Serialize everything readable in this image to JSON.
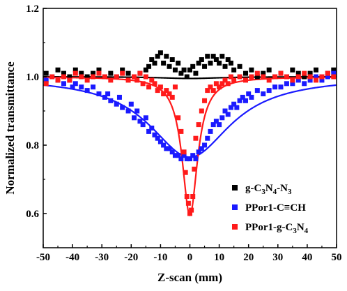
{
  "chart_data": {
    "type": "scatter",
    "xlabel": "Z-scan (mm)",
    "ylabel": "Normalized transmittance",
    "xlim": [
      -50,
      50
    ],
    "ylim": [
      0.5,
      1.2
    ],
    "x_ticks": [
      "-50",
      "-40",
      "-30",
      "-20",
      "-10",
      "0",
      "10",
      "20",
      "30",
      "40",
      "50"
    ],
    "y_ticks": [
      "0.6",
      "0.8",
      "1.0",
      "1.2"
    ],
    "legend_position": "bottom-right",
    "series": [
      {
        "name": "g-C3N4-N3",
        "color": "#000000",
        "fit_color": "#000000",
        "fit": {
          "baseline": 1.0,
          "depth": 0.005,
          "z0": 12
        },
        "points": [
          [
            -49,
            1.01
          ],
          [
            -47,
            1.0
          ],
          [
            -45,
            1.02
          ],
          [
            -43,
            1.01
          ],
          [
            -41,
            1.0
          ],
          [
            -39,
            1.02
          ],
          [
            -37,
            1.01
          ],
          [
            -35,
            1.0
          ],
          [
            -33,
            1.01
          ],
          [
            -31,
            1.02
          ],
          [
            -29,
            1.0
          ],
          [
            -27,
            1.01
          ],
          [
            -25,
            1.0
          ],
          [
            -23,
            1.02
          ],
          [
            -21,
            1.01
          ],
          [
            -19,
            1.0
          ],
          [
            -17,
            1.01
          ],
          [
            -15,
            1.02
          ],
          [
            -14,
            1.03
          ],
          [
            -13,
            1.05
          ],
          [
            -12,
            1.04
          ],
          [
            -11,
            1.06
          ],
          [
            -10,
            1.07
          ],
          [
            -9,
            1.04
          ],
          [
            -8,
            1.06
          ],
          [
            -7,
            1.03
          ],
          [
            -6,
            1.05
          ],
          [
            -5,
            1.02
          ],
          [
            -4,
            1.04
          ],
          [
            -3,
            1.01
          ],
          [
            -2,
            1.02
          ],
          [
            -1,
            1.0
          ],
          [
            0,
            1.02
          ],
          [
            1,
            1.03
          ],
          [
            2,
            1.01
          ],
          [
            3,
            1.04
          ],
          [
            4,
            1.05
          ],
          [
            5,
            1.03
          ],
          [
            6,
            1.06
          ],
          [
            7,
            1.04
          ],
          [
            8,
            1.06
          ],
          [
            9,
            1.05
          ],
          [
            10,
            1.04
          ],
          [
            11,
            1.06
          ],
          [
            12,
            1.03
          ],
          [
            13,
            1.05
          ],
          [
            14,
            1.04
          ],
          [
            15,
            1.02
          ],
          [
            17,
            1.03
          ],
          [
            19,
            1.01
          ],
          [
            21,
            1.02
          ],
          [
            23,
            1.0
          ],
          [
            25,
            1.01
          ],
          [
            27,
            1.02
          ],
          [
            29,
            1.0
          ],
          [
            31,
            1.01
          ],
          [
            33,
            1.0
          ],
          [
            35,
            1.02
          ],
          [
            37,
            1.01
          ],
          [
            39,
            1.0
          ],
          [
            41,
            1.01
          ],
          [
            43,
            1.02
          ],
          [
            45,
            1.0
          ],
          [
            47,
            1.01
          ],
          [
            49,
            1.02
          ]
        ]
      },
      {
        "name": "PPor1-C≡CH",
        "color": "#1a1aff",
        "fit_color": "#1a1aff",
        "fit": {
          "baseline": 1.0,
          "depth": 0.235,
          "z0": 17
        },
        "points": [
          [
            -49,
            0.99
          ],
          [
            -47,
            1.0
          ],
          [
            -45,
            0.99
          ],
          [
            -43,
            0.98
          ],
          [
            -41,
            0.99
          ],
          [
            -40,
            0.97
          ],
          [
            -39,
            0.98
          ],
          [
            -37,
            0.97
          ],
          [
            -35,
            0.96
          ],
          [
            -33,
            0.97
          ],
          [
            -31,
            0.95
          ],
          [
            -29,
            0.94
          ],
          [
            -28,
            0.95
          ],
          [
            -27,
            0.93
          ],
          [
            -25,
            0.92
          ],
          [
            -24,
            0.94
          ],
          [
            -23,
            0.91
          ],
          [
            -21,
            0.9
          ],
          [
            -20,
            0.92
          ],
          [
            -19,
            0.88
          ],
          [
            -18,
            0.9
          ],
          [
            -17,
            0.87
          ],
          [
            -16,
            0.86
          ],
          [
            -15,
            0.88
          ],
          [
            -14,
            0.84
          ],
          [
            -13,
            0.85
          ],
          [
            -12,
            0.83
          ],
          [
            -11,
            0.82
          ],
          [
            -10,
            0.81
          ],
          [
            -9,
            0.8
          ],
          [
            -8,
            0.79
          ],
          [
            -7,
            0.79
          ],
          [
            -6,
            0.78
          ],
          [
            -5,
            0.77
          ],
          [
            -4,
            0.77
          ],
          [
            -3,
            0.76
          ],
          [
            -2,
            0.77
          ],
          [
            -1,
            0.76
          ],
          [
            0,
            0.76
          ],
          [
            1,
            0.77
          ],
          [
            2,
            0.76
          ],
          [
            3,
            0.78
          ],
          [
            4,
            0.79
          ],
          [
            5,
            0.8
          ],
          [
            6,
            0.82
          ],
          [
            7,
            0.84
          ],
          [
            8,
            0.86
          ],
          [
            9,
            0.87
          ],
          [
            10,
            0.86
          ],
          [
            11,
            0.88
          ],
          [
            12,
            0.9
          ],
          [
            13,
            0.89
          ],
          [
            14,
            0.91
          ],
          [
            15,
            0.92
          ],
          [
            16,
            0.91
          ],
          [
            17,
            0.93
          ],
          [
            18,
            0.94
          ],
          [
            19,
            0.93
          ],
          [
            20,
            0.95
          ],
          [
            21,
            0.94
          ],
          [
            23,
            0.96
          ],
          [
            25,
            0.95
          ],
          [
            27,
            0.96
          ],
          [
            29,
            0.97
          ],
          [
            31,
            0.97
          ],
          [
            33,
            0.98
          ],
          [
            35,
            0.98
          ],
          [
            37,
            0.99
          ],
          [
            39,
            0.98
          ],
          [
            41,
            0.99
          ],
          [
            43,
            1.0
          ],
          [
            45,
            0.99
          ],
          [
            47,
            1.0
          ],
          [
            49,
            1.01
          ]
        ]
      },
      {
        "name": "PPor1-g-C3N4",
        "color": "#ff1a1a",
        "fit_color": "#ff1a1a",
        "fit": {
          "baseline": 1.0,
          "depth": 0.405,
          "z0": 3.2
        },
        "points": [
          [
            -49,
            0.98
          ],
          [
            -47,
            1.0
          ],
          [
            -45,
            0.99
          ],
          [
            -43,
            1.0
          ],
          [
            -41,
            0.99
          ],
          [
            -39,
            1.01
          ],
          [
            -37,
            1.0
          ],
          [
            -35,
            0.99
          ],
          [
            -33,
            1.0
          ],
          [
            -31,
            1.01
          ],
          [
            -29,
            1.0
          ],
          [
            -27,
            0.99
          ],
          [
            -25,
            1.0
          ],
          [
            -23,
            1.01
          ],
          [
            -21,
            0.99
          ],
          [
            -19,
            1.0
          ],
          [
            -18,
            0.99
          ],
          [
            -17,
            1.01
          ],
          [
            -16,
            0.98
          ],
          [
            -15,
            1.0
          ],
          [
            -14,
            0.97
          ],
          [
            -13,
            0.99
          ],
          [
            -12,
            0.98
          ],
          [
            -11,
            0.96
          ],
          [
            -10,
            0.97
          ],
          [
            -9,
            0.95
          ],
          [
            -8,
            0.96
          ],
          [
            -7,
            0.95
          ],
          [
            -6,
            0.94
          ],
          [
            -5,
            0.97
          ],
          [
            -4,
            0.88
          ],
          [
            -3,
            0.84
          ],
          [
            -2,
            0.78
          ],
          [
            -1.5,
            0.72
          ],
          [
            -1,
            0.65
          ],
          [
            -0.5,
            0.63
          ],
          [
            0,
            0.6
          ],
          [
            0.5,
            0.61
          ],
          [
            1,
            0.65
          ],
          [
            1.5,
            0.73
          ],
          [
            2,
            0.82
          ],
          [
            3,
            0.86
          ],
          [
            4,
            0.9
          ],
          [
            5,
            0.93
          ],
          [
            6,
            0.96
          ],
          [
            7,
            0.97
          ],
          [
            8,
            0.96
          ],
          [
            9,
            0.98
          ],
          [
            10,
            0.97
          ],
          [
            11,
            0.98
          ],
          [
            12,
            0.99
          ],
          [
            13,
            0.98
          ],
          [
            14,
            1.0
          ],
          [
            15,
            0.99
          ],
          [
            17,
            1.0
          ],
          [
            19,
            0.99
          ],
          [
            21,
            1.0
          ],
          [
            23,
            1.01
          ],
          [
            25,
            1.0
          ],
          [
            27,
            0.99
          ],
          [
            29,
            1.0
          ],
          [
            31,
            1.01
          ],
          [
            33,
            1.0
          ],
          [
            35,
            0.99
          ],
          [
            37,
            1.0
          ],
          [
            39,
            1.01
          ],
          [
            41,
            1.0
          ],
          [
            43,
            0.99
          ],
          [
            45,
            1.0
          ],
          [
            47,
            1.01
          ],
          [
            49,
            1.0
          ]
        ]
      }
    ]
  }
}
